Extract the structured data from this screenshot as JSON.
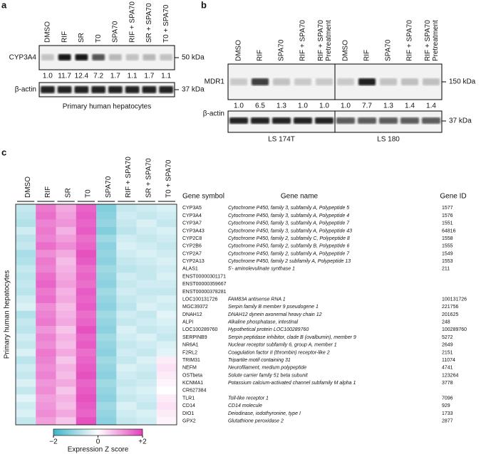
{
  "panel_a": {
    "label": "a",
    "lanes": [
      "DMSO",
      "RIF",
      "SR",
      "T0",
      "SPA70",
      "RIF + SPA70",
      "SR + SPA70",
      "T0 + SPA70"
    ],
    "blot": "CYP3A4",
    "marker": "50 kDa",
    "values": [
      "1.0",
      "11.7",
      "12.4",
      "7.2",
      "1.7",
      "1.1",
      "1.7",
      "1.1"
    ],
    "loading": "β-actin",
    "loading_marker": "37 kDa",
    "caption": "Primary human hepatocytes"
  },
  "panel_b": {
    "label": "b",
    "lanes": [
      "DMSO",
      "RIF",
      "SPA70",
      "RIF + SPA70",
      "RIF + SPA70 Pretreatment",
      "DMSO",
      "RIF",
      "SPA70",
      "RIF + SPA70",
      "RIF + SPA70 Pretreatment"
    ],
    "blot": "MDR1",
    "marker": "150 kDa",
    "values": [
      "1.0",
      "6.5",
      "1.3",
      "1.0",
      "1.0",
      "1.0",
      "7.7",
      "1.3",
      "1.4",
      "1.4"
    ],
    "loading": "β-actin",
    "loading_marker": "37 kDa",
    "cell_lines": [
      "LS 174T",
      "LS 180"
    ]
  },
  "panel_c": {
    "label": "c",
    "columns": [
      "DMSO",
      "RIF",
      "SR",
      "T0",
      "SPA70",
      "RIF + SPA70",
      "SR + SPA70",
      "T0 + SPA70"
    ],
    "side_label": "Primary human hepatocytes",
    "headers": [
      "Gene symbol",
      "Gene name",
      "Gene ID"
    ],
    "genes": [
      {
        "symbol": "CYP3A5",
        "name": "Cytochrome P450, family 3, subfamily A, Polypeptide 5",
        "id": "1577",
        "z": [
          -0.6,
          1.4,
          0.9,
          1.6,
          -1.3,
          -0.6,
          -0.5,
          -0.4
        ]
      },
      {
        "symbol": "CYP3A4",
        "name": "Cytochrome P450, family 3, subfamily A, Polypeptide 4",
        "id": "1576",
        "z": [
          -0.7,
          1.5,
          1.0,
          1.7,
          -1.2,
          -0.5,
          -0.6,
          -0.5
        ]
      },
      {
        "symbol": "CYP3A7",
        "name": "Cytochrome P450, family 3, subfamily A, Polypeptide 7",
        "id": "1551",
        "z": [
          -0.8,
          1.3,
          1.1,
          1.6,
          -1.1,
          -0.6,
          -0.4,
          -0.6
        ]
      },
      {
        "symbol": "CYP3A43",
        "name": "Cytochrome P450, family 3, subfamily A, Polypeptide 43",
        "id": "64816",
        "z": [
          -0.5,
          1.4,
          0.8,
          1.7,
          -1.3,
          -0.7,
          -0.5,
          -0.4
        ]
      },
      {
        "symbol": "CYP2C8",
        "name": "Cytochrome P450, family 2, subfamily C, Polypeptide 8",
        "id": "1558",
        "z": [
          -0.7,
          1.3,
          1.0,
          1.5,
          -1.0,
          -0.5,
          -0.6,
          -0.5
        ]
      },
      {
        "symbol": "CYP2B6",
        "name": "Cytochrome P450, family 2, subfamily B, Polypeptide 6",
        "id": "1555",
        "z": [
          -0.6,
          1.5,
          1.2,
          1.6,
          -1.2,
          -0.4,
          -0.5,
          -0.6
        ]
      },
      {
        "symbol": "CYP2A7",
        "name": "Cytochrome P450, family 2, subfamily A, Polypeptide 7",
        "id": "1549",
        "z": [
          -0.9,
          1.2,
          0.9,
          1.8,
          -1.1,
          -0.5,
          -0.4,
          -0.5
        ]
      },
      {
        "symbol": "CYP2A13",
        "name": "Cytochrome P450, family 2 subfamily A, Polypeptide 13",
        "id": "1553",
        "z": [
          -0.8,
          1.4,
          0.7,
          1.7,
          -1.2,
          -0.6,
          -0.5,
          -0.4
        ]
      },
      {
        "symbol": "ALAS1",
        "name": "5'- aminolevulinate synthase 1",
        "id": "211",
        "z": [
          -0.6,
          1.3,
          0.8,
          1.5,
          -1.0,
          -0.7,
          -0.6,
          -0.5
        ]
      },
      {
        "symbol": "ENST00000301171",
        "z": [
          -0.7,
          1.5,
          0.9,
          1.6,
          -1.1,
          -0.5,
          -0.6,
          -0.4
        ]
      },
      {
        "symbol": "ENST00000359667",
        "z": [
          -0.6,
          1.6,
          1.0,
          1.5,
          -1.2,
          -0.6,
          -0.5,
          -0.5
        ]
      },
      {
        "symbol": "ENST00000378281",
        "z": [
          -0.7,
          1.4,
          0.8,
          1.7,
          -1.0,
          -0.5,
          -0.6,
          -0.6
        ]
      },
      {
        "symbol": "LOC100131726",
        "name": "FAM83A antisense RNA 1",
        "id": "100131726",
        "z": [
          -0.5,
          1.5,
          0.9,
          1.6,
          -1.1,
          -0.6,
          -0.5,
          -0.4
        ]
      },
      {
        "symbol": "MGC39372",
        "name": "Serpin family B member 9 pseudogene 1",
        "id": "221756",
        "z": [
          -0.4,
          1.2,
          0.7,
          1.7,
          -1.2,
          -0.7,
          -0.4,
          -0.5
        ]
      },
      {
        "symbol": "DNAH12",
        "name": "DNAH12 dynein axonemal heavy chain 12",
        "id": "201625",
        "z": [
          -0.8,
          1.3,
          0.8,
          1.5,
          -1.0,
          -0.5,
          -0.6,
          -0.3
        ]
      },
      {
        "symbol": "ALPI",
        "name": "Alkaline phosphatase, intestinal",
        "id": "248",
        "z": [
          -0.6,
          1.4,
          0.9,
          1.6,
          -1.1,
          -0.6,
          -0.5,
          -0.4
        ]
      },
      {
        "symbol": "LOC100289760",
        "name": "Hypothetical protein LOC100289760",
        "id": "100289760",
        "z": [
          -0.7,
          1.1,
          0.6,
          1.8,
          -1.2,
          -0.4,
          -0.6,
          -0.5
        ]
      },
      {
        "symbol": "SERPINB9",
        "name": "Serpin peptidase inhibitor, clade B (ovalbumin), member 9",
        "id": "5272",
        "z": [
          -0.5,
          1.3,
          0.8,
          1.6,
          -1.0,
          -0.5,
          -0.4,
          -0.6
        ]
      },
      {
        "symbol": "NR6A1",
        "name": "Nuclear receptor subfamily 6, group A, member 1",
        "id": "2649",
        "z": [
          -0.6,
          1.2,
          0.7,
          1.7,
          -1.1,
          -0.6,
          -0.5,
          -0.4
        ]
      },
      {
        "symbol": "F2RL2",
        "name": "Coagulation factor II (thrombin) receptor-like 2",
        "id": "2151",
        "z": [
          -0.4,
          1.4,
          0.9,
          1.5,
          -1.2,
          -0.5,
          -0.6,
          -0.3
        ]
      },
      {
        "symbol": "TRIM31",
        "name": "Tripartite motif containing 31",
        "id": "11074",
        "z": [
          -0.7,
          1.3,
          0.6,
          1.6,
          -1.0,
          -0.6,
          -0.4,
          0.2
        ]
      },
      {
        "symbol": "NEFM",
        "name": "Neurofilament, medium polypeptide",
        "id": "4741",
        "z": [
          -0.5,
          1.2,
          0.8,
          1.7,
          -1.1,
          -0.4,
          -0.5,
          0.3
        ]
      },
      {
        "symbol": "OSTbeta",
        "name": "Solute carrier family 51 beta subunit",
        "id": "123264",
        "z": [
          -0.6,
          1.3,
          0.7,
          1.8,
          -1.2,
          -0.5,
          -0.6,
          0.2
        ]
      },
      {
        "symbol": "KCNMA1",
        "name": "Potassium calcium-activated channel subfamily M alpha 1",
        "id": "3778",
        "z": [
          -0.4,
          1.1,
          0.9,
          1.6,
          -1.0,
          -0.6,
          -0.5,
          0.1
        ]
      },
      {
        "symbol": "CR627384",
        "z": [
          -0.6,
          1.2,
          0.6,
          1.7,
          -1.1,
          -0.5,
          -0.4,
          0.0
        ]
      },
      {
        "symbol": "TLR1",
        "name": "Toll-like receptor 1",
        "id": "7096",
        "z": [
          -0.3,
          1.0,
          0.8,
          1.8,
          -1.2,
          -0.6,
          -0.5,
          0.2
        ]
      },
      {
        "symbol": "CD14",
        "name": "CD14 molecule",
        "id": "929",
        "z": [
          -0.5,
          1.1,
          0.7,
          1.7,
          -1.0,
          -0.4,
          -0.6,
          0.3
        ]
      },
      {
        "symbol": "DIO1",
        "name": "Deiodinase, iodothyronine, type I",
        "id": "1733",
        "z": [
          -0.4,
          1.2,
          0.9,
          1.6,
          -1.1,
          -0.5,
          -0.4,
          0.2
        ]
      },
      {
        "symbol": "GPX2",
        "name": "Glutathione peroxidase 2",
        "id": "2877",
        "z": [
          -0.6,
          1.0,
          0.6,
          1.8,
          -1.2,
          -0.6,
          -0.5,
          0.1
        ]
      }
    ],
    "colorbar": {
      "ticks": [
        "−2",
        "0",
        "+2"
      ],
      "title": "Expression Z score"
    }
  }
}
